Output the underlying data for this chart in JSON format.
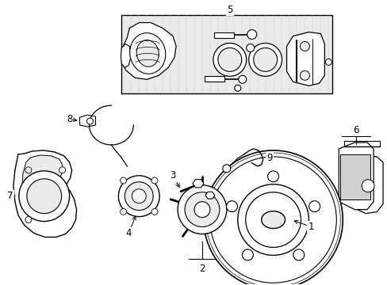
{
  "background_color": "#ffffff",
  "line_color": "#000000",
  "fig_width": 4.89,
  "fig_height": 3.6,
  "dpi": 100,
  "label_fontsize": 8.5,
  "lw_main": 0.9,
  "lw_thin": 0.6,
  "lw_thick": 1.2,
  "part_fill": "#f5f5f5",
  "rect_fill": "#ebebeb",
  "white": "#ffffff"
}
